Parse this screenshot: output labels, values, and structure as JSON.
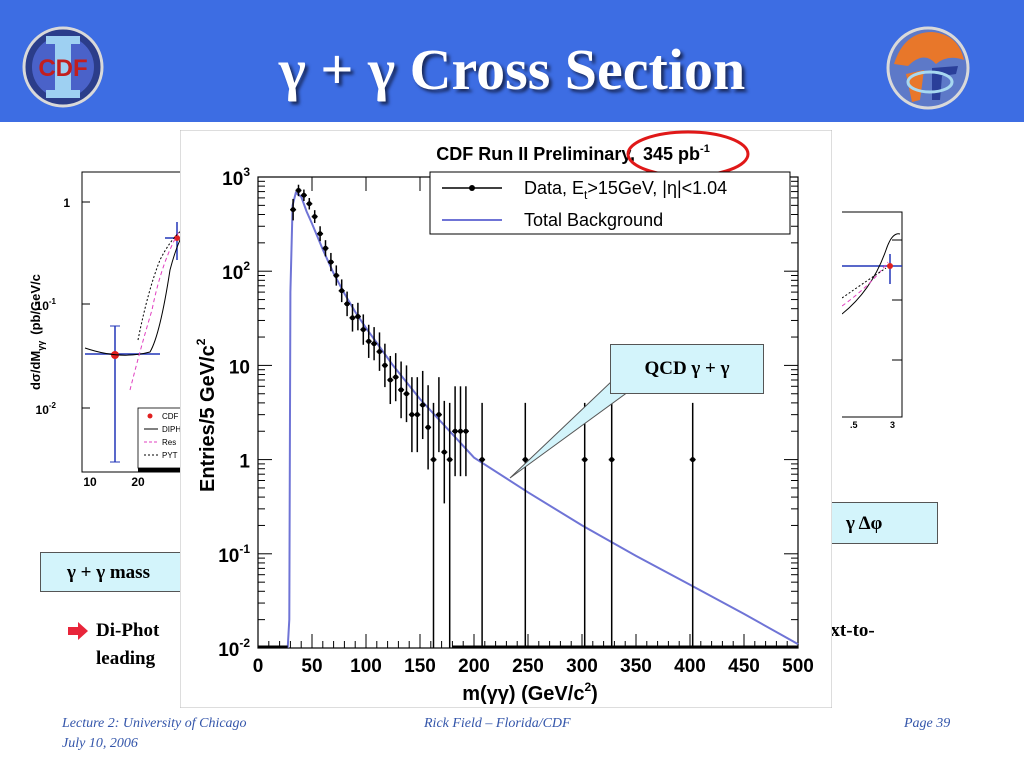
{
  "slide": {
    "title": "γ + γ Cross Section",
    "header_color": "#3d6de3",
    "footer": {
      "left_line1": "Lecture 2: University of Chicago",
      "left_line2": "July 10, 2006",
      "center": "Rick Field – Florida/CDF",
      "right": "Page 39"
    },
    "bullet": {
      "line1": "Di-Phot",
      "line1_right": "ext-to-",
      "line2": "leading"
    },
    "callouts": {
      "mass": "γ + γ  mass",
      "dphi": "γ  Δφ",
      "qcd": "QCD γ + γ"
    },
    "left_logo_text": "CDF",
    "left_plot": {
      "ylabel": "dσ/dM",
      "ylabel_sub": "γγ",
      "ylabel_unit": "(pb/GeV/c",
      "ytick_labels": [
        "1",
        "10",
        "10"
      ],
      "ytick_sup": [
        "",
        "-1",
        "-2"
      ],
      "xtick_labels": [
        "10",
        "20"
      ],
      "legend": [
        "CDF",
        "DIPH",
        "Res",
        "PYT"
      ]
    },
    "right_plot": {
      "xtick_labels": [
        ".5",
        "3"
      ]
    }
  },
  "chart_data": {
    "type": "scatter",
    "title": "CDF Run II Preliminary,",
    "title_highlight": "345 pb",
    "title_highlight_sup": "-1",
    "xlabel": "m(γγ) (GeV/c",
    "xlabel_sup": "2",
    "xlabel_end": ")",
    "ylabel": "Entries/5 GeV/c",
    "ylabel_sup": "2",
    "xlim": [
      0,
      500
    ],
    "ylim": [
      0.01,
      1000
    ],
    "yscale": "log",
    "xticks": [
      0,
      50,
      100,
      150,
      200,
      250,
      300,
      350,
      400,
      450,
      500
    ],
    "yticks": [
      {
        "value": 1000,
        "base": "10",
        "sup": "3"
      },
      {
        "value": 100,
        "base": "10",
        "sup": "2"
      },
      {
        "value": 10,
        "base": "10",
        "sup": ""
      },
      {
        "value": 1,
        "base": "1",
        "sup": ""
      },
      {
        "value": 0.1,
        "base": "10",
        "sup": "-1"
      },
      {
        "value": 0.01,
        "base": "10",
        "sup": "-2"
      }
    ],
    "legend": {
      "placement": "top-right",
      "data_label": "Data, E",
      "data_label_sub": "t",
      "data_label_rest": ">15GeV, |η|<1.04",
      "background_label": "Total Background"
    },
    "series": [
      {
        "name": "Data, Et>15GeV, |η|<1.04",
        "color": "#000000",
        "points": [
          [
            32.5,
            450,
            1.3
          ],
          [
            37.5,
            720,
            1.15
          ],
          [
            42.5,
            640,
            1.15
          ],
          [
            47.5,
            520,
            1.15
          ],
          [
            52.5,
            380,
            1.17
          ],
          [
            57.5,
            250,
            1.2
          ],
          [
            62.5,
            175,
            1.22
          ],
          [
            67.5,
            125,
            1.25
          ],
          [
            72.5,
            90,
            1.28
          ],
          [
            77.5,
            62,
            1.32
          ],
          [
            82.5,
            45,
            1.35
          ],
          [
            87.5,
            32,
            1.4
          ],
          [
            92.5,
            33,
            1.4
          ],
          [
            97.5,
            24,
            1.45
          ],
          [
            102.5,
            18,
            1.5
          ],
          [
            107.5,
            17,
            1.5
          ],
          [
            112.5,
            14,
            1.6
          ],
          [
            117.5,
            10,
            1.7
          ],
          [
            122.5,
            7,
            1.8
          ],
          [
            127.5,
            7.5,
            1.8
          ],
          [
            132.5,
            5.5,
            2.0
          ],
          [
            137.5,
            5,
            2.0
          ],
          [
            142.5,
            3,
            2.5
          ],
          [
            147.5,
            3,
            2.5
          ],
          [
            152.5,
            3.8,
            2.3
          ],
          [
            157.5,
            2.2,
            2.8
          ],
          [
            162.5,
            1,
            4.0
          ],
          [
            167.5,
            3,
            2.5
          ],
          [
            172.5,
            1.2,
            3.5
          ],
          [
            177.5,
            1,
            4.0
          ],
          [
            182.5,
            2,
            3.0
          ],
          [
            187.5,
            2,
            3.0
          ],
          [
            192.5,
            2,
            3.0
          ],
          [
            207.5,
            1,
            4.0
          ],
          [
            247.5,
            1,
            4.0
          ],
          [
            302.5,
            1,
            4.0
          ],
          [
            327.5,
            1,
            4.0
          ],
          [
            402.5,
            1,
            4.0
          ]
        ]
      },
      {
        "name": "Total Background",
        "color": "#6f74d6",
        "points": [
          [
            27.5,
            0.01
          ],
          [
            29,
            0.02
          ],
          [
            30,
            60
          ],
          [
            32,
            500
          ],
          [
            35,
            680
          ],
          [
            40,
            620
          ],
          [
            45,
            430
          ],
          [
            50,
            320
          ],
          [
            60,
            170
          ],
          [
            70,
            95
          ],
          [
            80,
            58
          ],
          [
            90,
            37
          ],
          [
            100,
            25
          ],
          [
            125,
            10
          ],
          [
            150,
            4.4
          ],
          [
            200,
            1.05
          ],
          [
            250,
            0.45
          ],
          [
            300,
            0.2
          ],
          [
            350,
            0.095
          ],
          [
            400,
            0.047
          ],
          [
            450,
            0.023
          ],
          [
            500,
            0.011
          ]
        ]
      }
    ]
  }
}
